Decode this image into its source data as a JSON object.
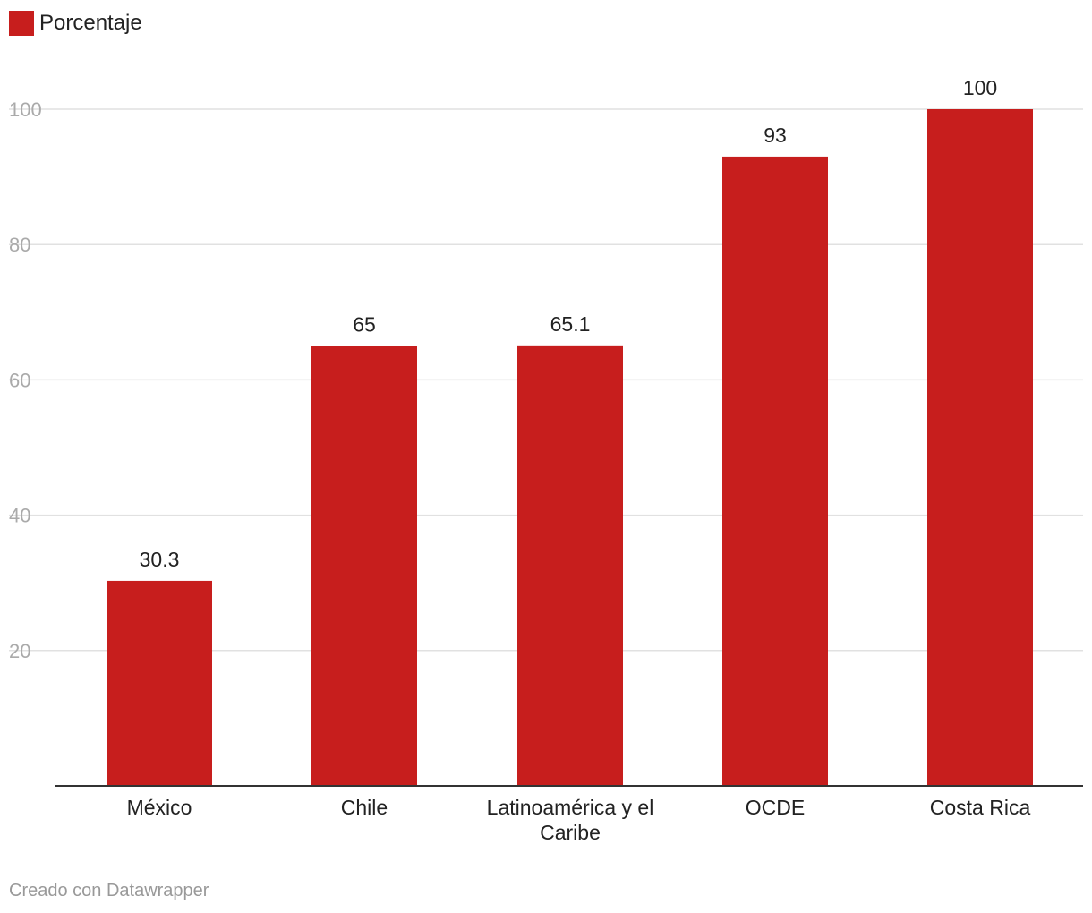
{
  "legend": {
    "label": "Porcentaje",
    "color": "#c71e1d"
  },
  "footer": "Creado con Datawrapper",
  "chart_data": {
    "type": "bar",
    "title": "",
    "xlabel": "",
    "ylabel": "",
    "categories": [
      "México",
      "Chile",
      "Latinoamérica y el Caribe",
      "OCDE",
      "Costa Rica"
    ],
    "category_lines": [
      [
        "México"
      ],
      [
        "Chile"
      ],
      [
        "Latinoamérica y el",
        "Caribe"
      ],
      [
        "OCDE"
      ],
      [
        "Costa Rica"
      ]
    ],
    "values": [
      30.3,
      65,
      65.1,
      93,
      100
    ],
    "value_labels": [
      "30.3",
      "65",
      "65.1",
      "93",
      "100"
    ],
    "yticks": [
      20,
      40,
      60,
      80,
      100
    ],
    "ylim": [
      0,
      100
    ],
    "grid": true,
    "bar_color": "#c71e1d"
  }
}
